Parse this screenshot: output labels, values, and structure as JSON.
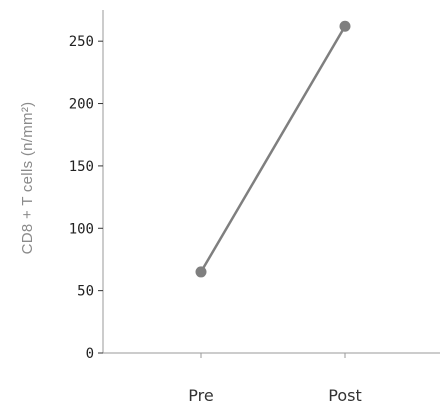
{
  "chart_data": {
    "type": "line",
    "categories": [
      "Pre",
      "Post"
    ],
    "series": [
      {
        "values": [
          65,
          262
        ]
      }
    ],
    "title": "",
    "xlabel": "",
    "ylabel": "CD8 + T cells (n/mm²)",
    "ylim": [
      0,
      275
    ],
    "yticks": [
      0,
      50,
      100,
      150,
      200,
      250
    ],
    "grid": false,
    "colors": {
      "line": "#7f7f7f",
      "marker": "#7f7f7f",
      "axis": "#9a9a9a",
      "ylabel": "#8a8a8a"
    }
  }
}
